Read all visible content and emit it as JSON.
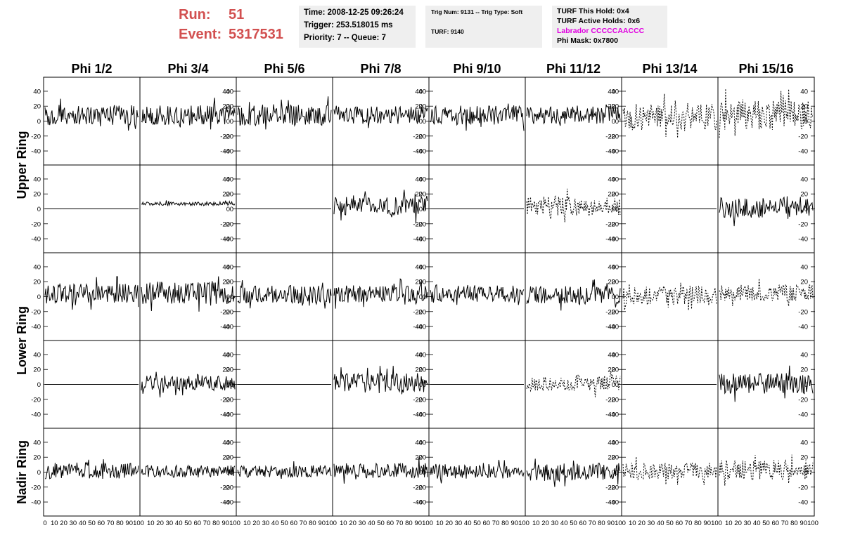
{
  "header": {
    "run_label": "Run:",
    "run_value": "51",
    "event_label": "Event:",
    "event_value": "5317531"
  },
  "box1": {
    "time": "Time: 2008-12-25 09:26:24",
    "trigger": "Trigger: 253.518015 ms",
    "priority": "Priority: 7 -- Queue: 7"
  },
  "box2": {
    "trig": "Trig Num: 9131 -- Trig Type: Soft",
    "turf": "TURF: 9140"
  },
  "box3": {
    "hold": "TURF This Hold: 0x4",
    "active": "TURF Active Holds: 0x6",
    "labrador": "Labrador CCCCCAACCC",
    "phimask": "Phi Mask: 0x7800"
  },
  "colors": {
    "run_text": "#d25050",
    "labrador_text": "#e000e0",
    "box_bg": "#efefef",
    "trace": "#000000"
  },
  "chart_data": {
    "type": "line",
    "columns": [
      "Phi 1/2",
      "Phi 3/4",
      "Phi 5/6",
      "Phi 7/8",
      "Phi 9/10",
      "Phi 11/12",
      "Phi 13/14",
      "Phi 15/16"
    ],
    "rows": [
      "Upper Ring",
      "Upper Ring",
      "Lower Ring",
      "Lower Ring",
      "Nadir Ring"
    ],
    "row_labels": [
      {
        "text": "Upper Ring",
        "rows": [
          0,
          1
        ]
      },
      {
        "text": "Lower Ring",
        "rows": [
          2,
          3
        ]
      },
      {
        "text": "Nadir Ring",
        "rows": [
          4
        ]
      }
    ],
    "ylim": [
      -55,
      55
    ],
    "yticks": [
      -40,
      -20,
      0,
      20,
      40
    ],
    "xlim": [
      0,
      100
    ],
    "xticks": [
      0,
      10,
      20,
      30,
      40,
      50,
      60,
      70,
      80,
      90,
      100
    ],
    "cells": [
      [
        {
          "style": "solid",
          "amp": 14,
          "offset": 8
        },
        {
          "style": "solid",
          "amp": 14,
          "offset": 8
        },
        {
          "style": "solid",
          "amp": 14,
          "offset": 8
        },
        {
          "style": "solid",
          "amp": 12,
          "offset": 8
        },
        {
          "style": "solid",
          "amp": 13,
          "offset": 8
        },
        {
          "style": "solid",
          "amp": 12,
          "offset": 8
        },
        {
          "style": "dashed",
          "amp": 18,
          "offset": 6
        },
        {
          "style": "dashed",
          "amp": 20,
          "offset": 8
        }
      ],
      [
        {
          "style": "flat",
          "amp": 0,
          "offset": 0
        },
        {
          "style": "solid",
          "amp": 2.5,
          "offset": 7
        },
        {
          "style": "flat",
          "amp": 0,
          "offset": 0
        },
        {
          "style": "solid",
          "amp": 14,
          "offset": 4
        },
        {
          "style": "flat",
          "amp": 0,
          "offset": 0
        },
        {
          "style": "dashed",
          "amp": 13,
          "offset": 4
        },
        {
          "style": "flat",
          "amp": 0,
          "offset": 0
        },
        {
          "style": "solid",
          "amp": 14,
          "offset": 2
        }
      ],
      [
        {
          "style": "solid",
          "amp": 13,
          "offset": 4
        },
        {
          "style": "solid",
          "amp": 15,
          "offset": 5
        },
        {
          "style": "solid",
          "amp": 12,
          "offset": 3
        },
        {
          "style": "solid",
          "amp": 12,
          "offset": 4
        },
        {
          "style": "solid",
          "amp": 12,
          "offset": 4
        },
        {
          "style": "solid",
          "amp": 12,
          "offset": 2
        },
        {
          "style": "dashed",
          "amp": 13,
          "offset": 2
        },
        {
          "style": "dashed",
          "amp": 11,
          "offset": 5
        }
      ],
      [
        {
          "style": "flat",
          "amp": 0,
          "offset": 0
        },
        {
          "style": "solid",
          "amp": 11,
          "offset": 2
        },
        {
          "style": "flat",
          "amp": 0,
          "offset": 0
        },
        {
          "style": "solid",
          "amp": 13,
          "offset": 2
        },
        {
          "style": "flat",
          "amp": 0,
          "offset": 0
        },
        {
          "style": "dashed",
          "amp": 11,
          "offset": 2
        },
        {
          "style": "flat",
          "amp": 0,
          "offset": 0
        },
        {
          "style": "solid",
          "amp": 14,
          "offset": 1
        }
      ],
      [
        {
          "style": "solid",
          "amp": 11,
          "offset": 2
        },
        {
          "style": "solid",
          "amp": 8,
          "offset": 1
        },
        {
          "style": "solid",
          "amp": 8,
          "offset": 1
        },
        {
          "style": "solid",
          "amp": 10,
          "offset": 2
        },
        {
          "style": "solid",
          "amp": 10,
          "offset": 1
        },
        {
          "style": "solid",
          "amp": 12,
          "offset": 0
        },
        {
          "style": "dashed",
          "amp": 11,
          "offset": 2
        },
        {
          "style": "dashed",
          "amp": 13,
          "offset": 3
        }
      ]
    ]
  }
}
